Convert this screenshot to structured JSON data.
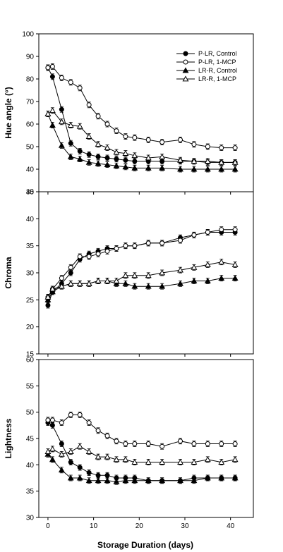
{
  "x_axis": {
    "label": "Storage Duration (days)",
    "ticks": [
      0,
      10,
      20,
      30,
      40
    ],
    "range": [
      -2,
      45
    ]
  },
  "legend": {
    "placement": "top-right of first panel",
    "entries": [
      {
        "name": "P-LR, Control",
        "marker": "filled-circle"
      },
      {
        "name": "P-LR, 1-MCP",
        "marker": "open-circle"
      },
      {
        "name": "LR-R, Control",
        "marker": "filled-triangle"
      },
      {
        "name": "LR-R, 1-MCP",
        "marker": "open-triangle"
      }
    ]
  },
  "chart_data": [
    {
      "type": "line",
      "ylabel": "Hue angle (°)",
      "ylim": [
        30,
        100
      ],
      "yticks": [
        30,
        40,
        50,
        60,
        70,
        80,
        90,
        100
      ],
      "x": [
        0,
        1,
        3,
        5,
        7,
        9,
        11,
        13,
        15,
        17,
        19,
        22,
        25,
        29,
        32,
        35,
        38,
        41
      ],
      "series": [
        {
          "name": "P-LR, Control",
          "marker": "filled-circle",
          "values": [
            85,
            81,
            66.5,
            51.5,
            48,
            46.5,
            45.5,
            45,
            44.5,
            44,
            43.5,
            43.5,
            43.5,
            43.5,
            43.5,
            43,
            43,
            43
          ]
        },
        {
          "name": "P-LR, 1-MCP",
          "marker": "open-circle",
          "values": [
            85,
            85.5,
            80.5,
            78.5,
            76,
            68.5,
            63.5,
            60,
            57,
            54.5,
            54,
            53,
            52,
            53,
            51,
            50,
            49.5,
            49.5
          ]
        },
        {
          "name": "LR-R, Control",
          "marker": "filled-triangle",
          "values": [
            64.5,
            59.5,
            50.5,
            45.5,
            44.5,
            43,
            42.5,
            42,
            41.5,
            41,
            40.5,
            40.5,
            40.5,
            40,
            40,
            40,
            40,
            40
          ]
        },
        {
          "name": "LR-R, 1-MCP",
          "marker": "open-triangle",
          "values": [
            64.5,
            66,
            61,
            59.5,
            59,
            54.5,
            51,
            49.5,
            47.5,
            47,
            46,
            45,
            45.5,
            44,
            43.5,
            43.5,
            43,
            43
          ]
        }
      ]
    },
    {
      "type": "line",
      "ylabel": "Chroma",
      "ylim": [
        15,
        45
      ],
      "yticks": [
        15,
        20,
        25,
        30,
        35,
        40,
        45
      ],
      "x": [
        0,
        1,
        3,
        5,
        7,
        9,
        11,
        13,
        15,
        17,
        19,
        22,
        25,
        29,
        32,
        35,
        38,
        41
      ],
      "series": [
        {
          "name": "P-LR, Control",
          "marker": "filled-circle",
          "values": [
            24,
            26.5,
            28,
            30,
            32.5,
            33.5,
            34,
            34.5,
            34.5,
            35,
            35,
            35.5,
            35.5,
            36.5,
            37,
            37.5,
            37.5,
            37.5
          ]
        },
        {
          "name": "P-LR, 1-MCP",
          "marker": "open-circle",
          "values": [
            25.5,
            27,
            29,
            31,
            33,
            33,
            33.5,
            34,
            34.5,
            35,
            35,
            35.5,
            35.5,
            36,
            37,
            37.5,
            38,
            38
          ]
        },
        {
          "name": "LR-R, Control",
          "marker": "filled-triangle",
          "values": [
            25,
            26.5,
            27.5,
            28,
            28,
            28,
            28.5,
            28.5,
            28,
            28,
            27.5,
            27.5,
            27.5,
            28,
            28.5,
            28.5,
            29,
            29
          ]
        },
        {
          "name": "LR-R, 1-MCP",
          "marker": "open-triangle",
          "values": [
            25.5,
            27,
            27.5,
            28,
            28,
            28,
            28.5,
            28.5,
            28.5,
            29.5,
            29.5,
            29.5,
            30,
            30.5,
            31,
            31.5,
            32,
            31.5
          ]
        }
      ]
    },
    {
      "type": "line",
      "ylabel": "Lightness",
      "ylim": [
        30,
        60
      ],
      "yticks": [
        30,
        35,
        40,
        45,
        50,
        55,
        60
      ],
      "x": [
        0,
        1,
        3,
        5,
        7,
        9,
        11,
        13,
        15,
        17,
        19,
        22,
        25,
        29,
        32,
        35,
        38,
        41
      ],
      "series": [
        {
          "name": "P-LR, Control",
          "marker": "filled-circle",
          "values": [
            48,
            47.5,
            44,
            40.5,
            39.5,
            38.5,
            38,
            38,
            37.5,
            37.5,
            37.5,
            37,
            37,
            37,
            37.5,
            37.5,
            37.5,
            37.5
          ]
        },
        {
          "name": "P-LR, 1-MCP",
          "marker": "open-circle",
          "values": [
            48.5,
            48.5,
            48,
            49.5,
            49.5,
            48,
            46.5,
            45.5,
            44.5,
            44,
            44,
            44,
            43.5,
            44.5,
            44,
            44,
            44,
            44
          ]
        },
        {
          "name": "LR-R, Control",
          "marker": "filled-triangle",
          "values": [
            42,
            41,
            39,
            37.5,
            37.5,
            37,
            37,
            37,
            36.8,
            37,
            37,
            37,
            37,
            37,
            37,
            37.5,
            37.5,
            37.5
          ]
        },
        {
          "name": "LR-R, 1-MCP",
          "marker": "open-triangle",
          "values": [
            42.5,
            43,
            42,
            42.5,
            43.5,
            42.5,
            41.5,
            41.5,
            41,
            41,
            40.5,
            40.5,
            40.5,
            40.5,
            40.5,
            41,
            40.5,
            41
          ]
        }
      ]
    }
  ]
}
